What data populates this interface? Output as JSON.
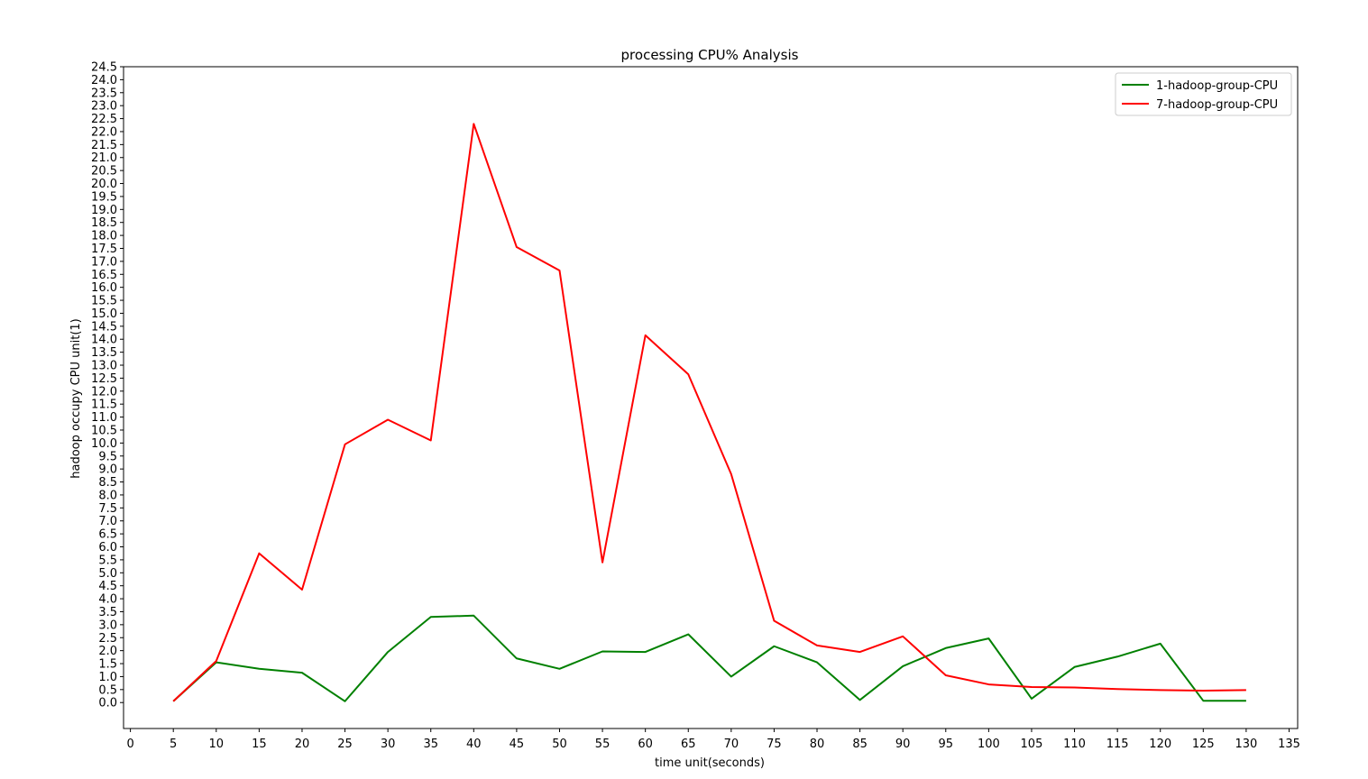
{
  "chart_data": {
    "type": "line",
    "title": "processing CPU% Analysis",
    "xlabel": "time unit(seconds)",
    "ylabel": "hadoop occupy CPU unit(1)",
    "xlim": [
      -0.8,
      136.0
    ],
    "ylim": [
      -1.0,
      24.5
    ],
    "xticks": [
      0,
      5,
      10,
      15,
      20,
      25,
      30,
      35,
      40,
      45,
      50,
      55,
      60,
      65,
      70,
      75,
      80,
      85,
      90,
      95,
      100,
      105,
      110,
      115,
      120,
      125,
      130,
      135
    ],
    "yticks": [
      0.0,
      0.5,
      1.0,
      1.5,
      2.0,
      2.5,
      3.0,
      3.5,
      4.0,
      4.5,
      5.0,
      5.5,
      6.0,
      6.5,
      7.0,
      7.5,
      8.0,
      8.5,
      9.0,
      9.5,
      10.0,
      10.5,
      11.0,
      11.5,
      12.0,
      12.5,
      13.0,
      13.5,
      14.0,
      14.5,
      15.0,
      15.5,
      16.0,
      16.5,
      17.0,
      17.5,
      18.0,
      18.5,
      19.0,
      19.5,
      20.0,
      20.5,
      21.0,
      21.5,
      22.0,
      22.5,
      23.0,
      23.5,
      24.0,
      24.5
    ],
    "x": [
      5,
      10,
      15,
      20,
      25,
      30,
      35,
      40,
      45,
      50,
      55,
      60,
      65,
      70,
      75,
      80,
      85,
      90,
      95,
      100,
      105,
      110,
      115,
      120,
      125,
      130
    ],
    "series": [
      {
        "name": "1-hadoop-group-CPU",
        "color": "#008000",
        "values": [
          0.05,
          1.55,
          1.3,
          1.15,
          0.05,
          1.95,
          3.3,
          3.35,
          1.7,
          1.3,
          1.97,
          1.95,
          2.63,
          1.0,
          2.17,
          1.55,
          0.1,
          1.4,
          2.1,
          2.47,
          0.15,
          1.37,
          1.77,
          2.27,
          0.07,
          0.07
        ]
      },
      {
        "name": "7-hadoop-group-CPU",
        "color": "#ff0000",
        "values": [
          0.05,
          1.6,
          5.75,
          4.35,
          9.95,
          10.9,
          10.1,
          22.3,
          17.55,
          16.65,
          5.4,
          14.15,
          12.65,
          8.8,
          3.15,
          2.2,
          1.95,
          2.55,
          1.05,
          0.7,
          0.6,
          0.58,
          0.52,
          0.48,
          0.46,
          0.48
        ]
      }
    ],
    "legend_position": "top-right",
    "grid": false
  }
}
